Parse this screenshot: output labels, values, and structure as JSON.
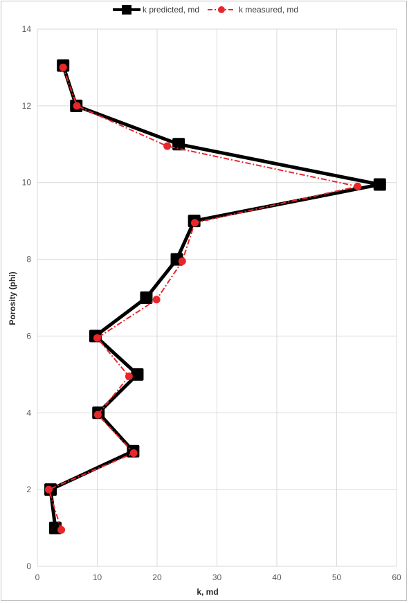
{
  "chart_data": {
    "type": "line",
    "title": "",
    "xlabel": "k, md",
    "ylabel": "Porosity (phi)",
    "xlim": [
      0,
      60
    ],
    "ylim": [
      0,
      14
    ],
    "xticks": [
      0,
      10,
      20,
      30,
      40,
      50,
      60
    ],
    "yticks": [
      0,
      2,
      4,
      6,
      8,
      10,
      12,
      14
    ],
    "grid": true,
    "legend_position": "top",
    "series": [
      {
        "name": "k predicted, md",
        "color": "#000000",
        "marker": "square",
        "line_style": "solid",
        "points": [
          {
            "x": 3.0,
            "y": 1
          },
          {
            "x": 2.2,
            "y": 2
          },
          {
            "x": 16.0,
            "y": 3
          },
          {
            "x": 10.2,
            "y": 4
          },
          {
            "x": 16.7,
            "y": 5
          },
          {
            "x": 9.7,
            "y": 6
          },
          {
            "x": 18.2,
            "y": 7
          },
          {
            "x": 23.3,
            "y": 8
          },
          {
            "x": 26.2,
            "y": 9
          },
          {
            "x": 57.2,
            "y": 9.95
          },
          {
            "x": 23.6,
            "y": 11
          },
          {
            "x": 6.5,
            "y": 12
          },
          {
            "x": 4.3,
            "y": 13.05
          }
        ]
      },
      {
        "name": "k measured, md",
        "color": "#e8272c",
        "marker": "circle",
        "line_style": "dash-dot",
        "points": [
          {
            "x": 4.0,
            "y": 0.95
          },
          {
            "x": 1.9,
            "y": 2
          },
          {
            "x": 16.1,
            "y": 2.95
          },
          {
            "x": 10.1,
            "y": 3.95
          },
          {
            "x": 15.3,
            "y": 4.95
          },
          {
            "x": 10.0,
            "y": 5.95
          },
          {
            "x": 19.9,
            "y": 6.95
          },
          {
            "x": 24.2,
            "y": 7.95
          },
          {
            "x": 26.3,
            "y": 8.95
          },
          {
            "x": 53.5,
            "y": 9.9
          },
          {
            "x": 21.7,
            "y": 10.95
          },
          {
            "x": 6.6,
            "y": 12
          },
          {
            "x": 4.3,
            "y": 13
          }
        ]
      }
    ]
  }
}
